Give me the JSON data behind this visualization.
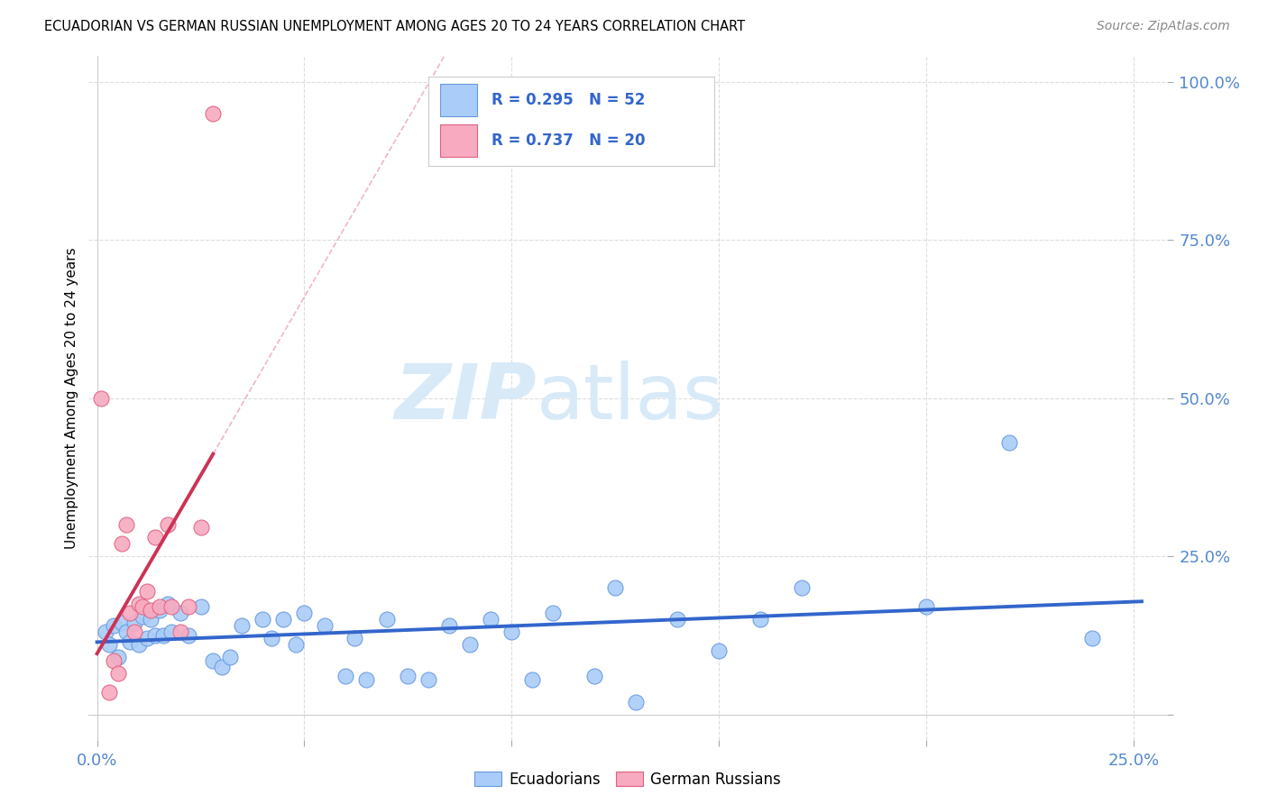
{
  "title": "ECUADORIAN VS GERMAN RUSSIAN UNEMPLOYMENT AMONG AGES 20 TO 24 YEARS CORRELATION CHART",
  "source": "Source: ZipAtlas.com",
  "ylabel": "Unemployment Among Ages 20 to 24 years",
  "xlim": [
    -0.002,
    0.258
  ],
  "ylim": [
    -0.04,
    1.04
  ],
  "xticks": [
    0.0,
    0.05,
    0.1,
    0.15,
    0.2,
    0.25
  ],
  "yticks": [
    0.0,
    0.25,
    0.5,
    0.75,
    1.0
  ],
  "ytick_labels": [
    "",
    "25.0%",
    "50.0%",
    "75.0%",
    "100.0%"
  ],
  "xtick_labels": [
    "0.0%",
    "",
    "",
    "",
    "",
    "25.0%"
  ],
  "blue_scatter_color": "#aaccf8",
  "blue_edge_color": "#6699e0",
  "pink_scatter_color": "#f8aac0",
  "pink_edge_color": "#e06080",
  "blue_line_color": "#3366cc",
  "pink_line_color": "#cc3355",
  "tick_color": "#5588cc",
  "grid_color": "#dddddd",
  "watermark_color": "#d8eaf8",
  "legend_text_color": "#3366cc",
  "ecuadorians_x": [
    0.002,
    0.003,
    0.004,
    0.005,
    0.006,
    0.007,
    0.008,
    0.009,
    0.01,
    0.011,
    0.012,
    0.013,
    0.014,
    0.015,
    0.016,
    0.017,
    0.018,
    0.02,
    0.022,
    0.025,
    0.028,
    0.03,
    0.032,
    0.035,
    0.04,
    0.042,
    0.045,
    0.048,
    0.05,
    0.055,
    0.06,
    0.062,
    0.065,
    0.07,
    0.075,
    0.08,
    0.085,
    0.09,
    0.095,
    0.1,
    0.105,
    0.11,
    0.12,
    0.125,
    0.13,
    0.14,
    0.15,
    0.16,
    0.17,
    0.2,
    0.22,
    0.24
  ],
  "ecuadorians_y": [
    0.13,
    0.11,
    0.14,
    0.09,
    0.145,
    0.13,
    0.115,
    0.145,
    0.11,
    0.155,
    0.12,
    0.15,
    0.125,
    0.165,
    0.125,
    0.175,
    0.13,
    0.16,
    0.125,
    0.17,
    0.085,
    0.075,
    0.09,
    0.14,
    0.15,
    0.12,
    0.15,
    0.11,
    0.16,
    0.14,
    0.06,
    0.12,
    0.055,
    0.15,
    0.06,
    0.055,
    0.14,
    0.11,
    0.15,
    0.13,
    0.055,
    0.16,
    0.06,
    0.2,
    0.02,
    0.15,
    0.1,
    0.15,
    0.2,
    0.17,
    0.43,
    0.12
  ],
  "german_russians_x": [
    0.001,
    0.003,
    0.004,
    0.005,
    0.006,
    0.007,
    0.008,
    0.009,
    0.01,
    0.011,
    0.012,
    0.013,
    0.014,
    0.015,
    0.017,
    0.018,
    0.02,
    0.022,
    0.025,
    0.028
  ],
  "german_russians_y": [
    0.5,
    0.035,
    0.085,
    0.065,
    0.27,
    0.3,
    0.16,
    0.13,
    0.175,
    0.17,
    0.195,
    0.165,
    0.28,
    0.17,
    0.3,
    0.17,
    0.13,
    0.17,
    0.295,
    0.95
  ]
}
